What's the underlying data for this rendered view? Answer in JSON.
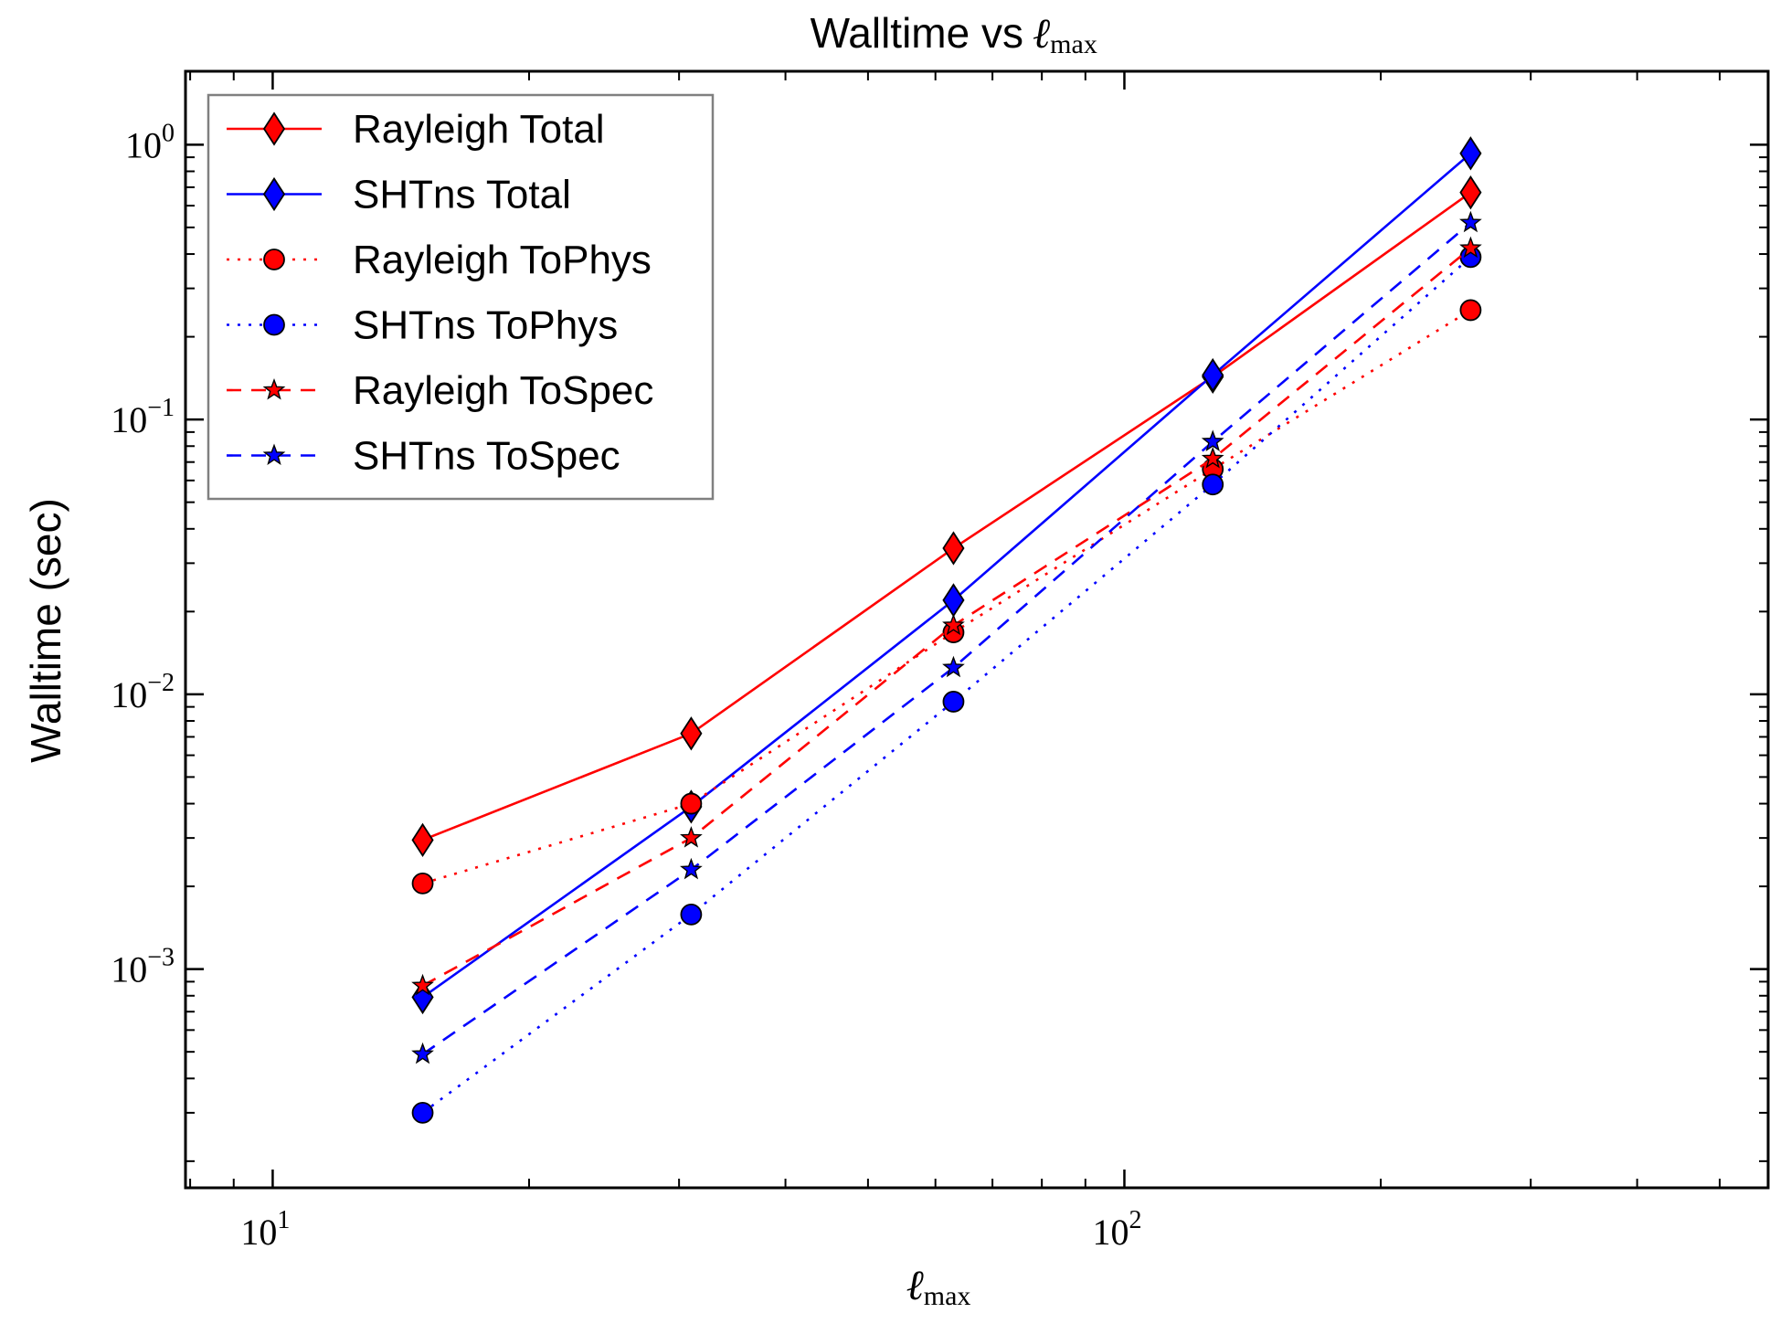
{
  "chart_data": {
    "type": "line",
    "title": "Walltime vs",
    "title_math": "ℓ",
    "title_math_sub": "max",
    "xlabel": "ℓ",
    "xlabel_sub": "max",
    "ylabel": "Walltime (sec)",
    "xscale": "log",
    "yscale": "log",
    "xlim": [
      7.9,
      570
    ],
    "ylim": [
      0.00016,
      1.85
    ],
    "xticks": [
      {
        "base": "10",
        "exp": "1"
      },
      {
        "base": "10",
        "exp": "2"
      }
    ],
    "yticks": [
      {
        "base": "10",
        "exp": "0"
      },
      {
        "base": "10",
        "exp": "−1"
      },
      {
        "base": "10",
        "exp": "−2"
      },
      {
        "base": "10",
        "exp": "−3"
      }
    ],
    "legend_position": "top-left",
    "x": [
      15,
      31,
      63,
      127,
      255
    ],
    "series": [
      {
        "name": "Rayleigh Total",
        "color": "#ff0000",
        "linestyle": "solid",
        "marker": "diamond",
        "values": [
          0.00295,
          0.0072,
          0.034,
          0.143,
          0.67
        ]
      },
      {
        "name": "SHTns Total",
        "color": "#0000ff",
        "linestyle": "solid",
        "marker": "diamond",
        "values": [
          0.00079,
          0.0039,
          0.022,
          0.145,
          0.93
        ]
      },
      {
        "name": "Rayleigh ToPhys",
        "color": "#ff0000",
        "linestyle": "dotted",
        "marker": "circle",
        "values": [
          0.00205,
          0.004,
          0.0168,
          0.066,
          0.25
        ]
      },
      {
        "name": "SHTns ToPhys",
        "color": "#0000ff",
        "linestyle": "dotted",
        "marker": "circle",
        "values": [
          0.0003,
          0.00158,
          0.0094,
          0.058,
          0.39
        ]
      },
      {
        "name": "Rayleigh ToSpec",
        "color": "#ff0000",
        "linestyle": "dashed",
        "marker": "star",
        "values": [
          0.00087,
          0.003,
          0.0178,
          0.072,
          0.42
        ]
      },
      {
        "name": "SHTns ToSpec",
        "color": "#0000ff",
        "linestyle": "dashed",
        "marker": "star",
        "values": [
          0.00049,
          0.0023,
          0.0125,
          0.083,
          0.52
        ]
      }
    ]
  }
}
